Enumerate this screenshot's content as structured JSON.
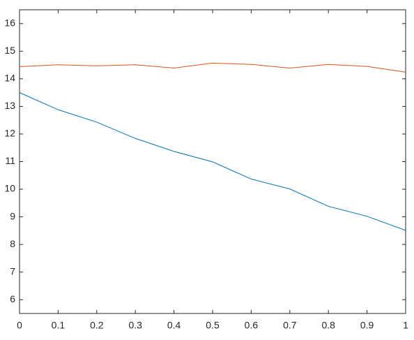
{
  "chart_data": {
    "type": "line",
    "x": [
      0,
      0.1,
      0.2,
      0.3,
      0.4,
      0.5,
      0.6,
      0.7,
      0.8,
      0.9,
      1
    ],
    "series": [
      {
        "color": "#0072BD",
        "values": [
          13.5,
          12.88,
          12.43,
          11.84,
          11.37,
          10.99,
          10.37,
          10.01,
          9.38,
          9.02,
          8.51
        ]
      },
      {
        "color": "#D95319",
        "values": [
          14.44,
          14.51,
          14.47,
          14.51,
          14.39,
          14.57,
          14.52,
          14.39,
          14.52,
          14.45,
          14.24
        ]
      }
    ],
    "xlim": [
      0,
      1
    ],
    "xticks": [
      0,
      0.1,
      0.2,
      0.3,
      0.4,
      0.5,
      0.6,
      0.7,
      0.8,
      0.9,
      1
    ],
    "ylim": [
      5.5,
      16.5
    ],
    "yticks": [
      6,
      7,
      8,
      9,
      10,
      11,
      12,
      13,
      14,
      15,
      16
    ],
    "grid": false
  }
}
